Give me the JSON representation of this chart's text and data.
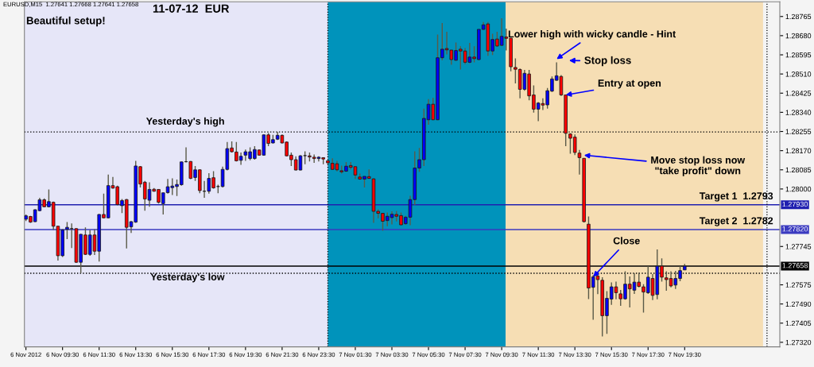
{
  "chart_data": {
    "type": "candlestick",
    "title": "11-07-12  EUR",
    "x": [
      "2012-11-06T07:30",
      "2012-11-06T07:45",
      "2012-11-06T08:00",
      "2012-11-06T08:15",
      "2012-11-06T08:30",
      "2012-11-06T08:45",
      "2012-11-06T09:00",
      "2012-11-06T09:15",
      "2012-11-06T09:30",
      "2012-11-06T09:45",
      "2012-11-06T10:00",
      "2012-11-06T10:15",
      "2012-11-06T10:30",
      "2012-11-06T10:45",
      "2012-11-06T11:00",
      "2012-11-06T11:15",
      "2012-11-06T11:30",
      "2012-11-06T11:45",
      "2012-11-06T12:00",
      "2012-11-06T12:15",
      "2012-11-06T12:30",
      "2012-11-06T12:45",
      "2012-11-06T13:00",
      "2012-11-06T13:15",
      "2012-11-06T13:30",
      "2012-11-06T13:45",
      "2012-11-06T14:00",
      "2012-11-06T14:15",
      "2012-11-06T14:30",
      "2012-11-06T14:45",
      "2012-11-06T15:00",
      "2012-11-06T15:15",
      "2012-11-06T15:30",
      "2012-11-06T15:45",
      "2012-11-06T16:00",
      "2012-11-06T16:15",
      "2012-11-06T16:30",
      "2012-11-06T16:45",
      "2012-11-06T17:00",
      "2012-11-06T17:15",
      "2012-11-06T17:30",
      "2012-11-06T17:45",
      "2012-11-06T18:00",
      "2012-11-06T18:15",
      "2012-11-06T18:30",
      "2012-11-06T18:45",
      "2012-11-06T19:00",
      "2012-11-06T19:15",
      "2012-11-06T19:30",
      "2012-11-06T19:45",
      "2012-11-06T20:00",
      "2012-11-06T20:15",
      "2012-11-06T20:30",
      "2012-11-06T20:45",
      "2012-11-06T21:00",
      "2012-11-06T21:15",
      "2012-11-06T21:30",
      "2012-11-06T21:45",
      "2012-11-06T22:00",
      "2012-11-06T22:15",
      "2012-11-06T22:30",
      "2012-11-06T22:45",
      "2012-11-06T23:00",
      "2012-11-06T23:15",
      "2012-11-06T23:30",
      "2012-11-06T23:45",
      "2012-11-07T00:00",
      "2012-11-07T00:15",
      "2012-11-07T00:30",
      "2012-11-07T00:45",
      "2012-11-07T01:00",
      "2012-11-07T01:15",
      "2012-11-07T01:30",
      "2012-11-07T01:45",
      "2012-11-07T02:00",
      "2012-11-07T02:15",
      "2012-11-07T02:30",
      "2012-11-07T02:45",
      "2012-11-07T03:00",
      "2012-11-07T03:15",
      "2012-11-07T03:30",
      "2012-11-07T03:45",
      "2012-11-07T04:00",
      "2012-11-07T04:15",
      "2012-11-07T04:30",
      "2012-11-07T04:45",
      "2012-11-07T05:00",
      "2012-11-07T05:15",
      "2012-11-07T05:30",
      "2012-11-07T05:45",
      "2012-11-07T06:00",
      "2012-11-07T06:15",
      "2012-11-07T06:30",
      "2012-11-07T06:45",
      "2012-11-07T07:00",
      "2012-11-07T07:15",
      "2012-11-07T07:30",
      "2012-11-07T07:45",
      "2012-11-07T08:00",
      "2012-11-07T08:15",
      "2012-11-07T08:30",
      "2012-11-07T08:45",
      "2012-11-07T09:00",
      "2012-11-07T09:15",
      "2012-11-07T09:30",
      "2012-11-07T09:45",
      "2012-11-07T10:00",
      "2012-11-07T10:15",
      "2012-11-07T10:30",
      "2012-11-07T10:45",
      "2012-11-07T11:00",
      "2012-11-07T11:15",
      "2012-11-07T11:30",
      "2012-11-07T11:45",
      "2012-11-07T12:00",
      "2012-11-07T12:15",
      "2012-11-07T12:30",
      "2012-11-07T12:45",
      "2012-11-07T13:00",
      "2012-11-07T13:15",
      "2012-11-07T13:30",
      "2012-11-07T13:45",
      "2012-11-07T14:00",
      "2012-11-07T14:15",
      "2012-11-07T14:30",
      "2012-11-07T14:45",
      "2012-11-07T15:00",
      "2012-11-07T15:15",
      "2012-11-07T15:30",
      "2012-11-07T15:45",
      "2012-11-07T16:00",
      "2012-11-07T16:15",
      "2012-11-07T16:30",
      "2012-11-07T16:45",
      "2012-11-07T17:00",
      "2012-11-07T17:15",
      "2012-11-07T17:30",
      "2012-11-07T17:45",
      "2012-11-07T18:00",
      "2012-11-07T18:15",
      "2012-11-07T18:30",
      "2012-11-07T18:45",
      "2012-11-07T19:00",
      "2012-11-07T19:15",
      "2012-11-07T19:30"
    ],
    "ohlc": [
      [
        1.27866,
        1.27887,
        1.27858,
        1.27881
      ],
      [
        1.27878,
        1.27881,
        1.2785,
        1.27853
      ],
      [
        1.27855,
        1.2791,
        1.27853,
        1.27908
      ],
      [
        1.27904,
        1.27961,
        1.27901,
        1.27952
      ],
      [
        1.27952,
        1.27958,
        1.27919,
        1.27921
      ],
      [
        1.27921,
        1.27998,
        1.27919,
        1.27944
      ],
      [
        1.27941,
        1.27944,
        1.27818,
        1.27835
      ],
      [
        1.27835,
        1.27835,
        1.27683,
        1.27704
      ],
      [
        1.27704,
        1.27822,
        1.27698,
        1.27818
      ],
      [
        1.27821,
        1.27853,
        1.27778,
        1.2783
      ],
      [
        1.27824,
        1.27847,
        1.27738,
        1.27824
      ],
      [
        1.27824,
        1.27826,
        1.27672,
        1.27675
      ],
      [
        1.27675,
        1.27801,
        1.27626,
        1.27799
      ],
      [
        1.27796,
        1.2783,
        1.27707,
        1.2771
      ],
      [
        1.2771,
        1.27818,
        1.27704,
        1.27796
      ],
      [
        1.27796,
        1.27822,
        1.27707,
        1.27724
      ],
      [
        1.27724,
        1.27889,
        1.27678,
        1.27887
      ],
      [
        1.27887,
        1.27979,
        1.2787,
        1.27872
      ],
      [
        1.27872,
        1.28064,
        1.2787,
        1.28015
      ],
      [
        1.28015,
        1.28053,
        1.28001,
        1.28004
      ],
      [
        1.2801,
        1.28015,
        1.27927,
        1.27931
      ],
      [
        1.27926,
        1.27956,
        1.27893,
        1.27949
      ],
      [
        1.27953,
        1.27956,
        1.27736,
        1.2783
      ],
      [
        1.27832,
        1.27858,
        1.27805,
        1.27855
      ],
      [
        1.27853,
        1.28125,
        1.2785,
        1.28102
      ],
      [
        1.28099,
        1.28102,
        1.28007,
        1.28022
      ],
      [
        1.2803,
        1.28036,
        1.27904,
        1.27956
      ],
      [
        1.2795,
        1.2803,
        1.27921,
        1.27998
      ],
      [
        1.27999,
        1.28004,
        1.27988,
        1.2799
      ],
      [
        1.27998,
        1.27999,
        1.27935,
        1.27941
      ],
      [
        1.27935,
        1.27984,
        1.27887,
        1.27983
      ],
      [
        1.27984,
        1.28045,
        1.27979,
        1.2801
      ],
      [
        1.28006,
        1.28047,
        1.27973,
        1.28013
      ],
      [
        1.28011,
        1.28042,
        1.27969,
        1.2802
      ],
      [
        1.28019,
        1.28121,
        1.28015,
        1.2812
      ],
      [
        1.28121,
        1.28185,
        1.28118,
        1.28121
      ],
      [
        1.28122,
        1.28124,
        1.28044,
        1.28047
      ],
      [
        1.28051,
        1.28102,
        1.28036,
        1.28085
      ],
      [
        1.28085,
        1.28087,
        1.27981,
        1.27993
      ],
      [
        1.2799,
        1.28036,
        1.27961,
        1.2799
      ],
      [
        1.2799,
        1.2807,
        1.27979,
        1.28047
      ],
      [
        1.2805,
        1.28079,
        1.28001,
        1.28005
      ],
      [
        1.28011,
        1.28019,
        1.27981,
        1.28011
      ],
      [
        1.28011,
        1.28099,
        1.28007,
        1.28087
      ],
      [
        1.28087,
        1.28208,
        1.28082,
        1.28179
      ],
      [
        1.28182,
        1.28211,
        1.28162,
        1.28165
      ],
      [
        1.28164,
        1.28208,
        1.28122,
        1.28125
      ],
      [
        1.28127,
        1.28162,
        1.28107,
        1.28145
      ],
      [
        1.2815,
        1.28175,
        1.28125,
        1.28165
      ],
      [
        1.28135,
        1.28185,
        1.28127,
        1.28165
      ],
      [
        1.28135,
        1.2819,
        1.2813,
        1.28175
      ],
      [
        1.28173,
        1.28175,
        1.28148,
        1.2815
      ],
      [
        1.2815,
        1.28242,
        1.28148,
        1.2824
      ],
      [
        1.2824,
        1.28248,
        1.2819,
        1.28202
      ],
      [
        1.28204,
        1.2824,
        1.28202,
        1.28219
      ],
      [
        1.28221,
        1.28253,
        1.28217,
        1.28238
      ],
      [
        1.28238,
        1.28242,
        1.28202,
        1.28204
      ],
      [
        1.28208,
        1.28211,
        1.28145,
        1.28147
      ],
      [
        1.2815,
        1.28162,
        1.28102,
        1.2813
      ],
      [
        1.2813,
        1.28145,
        1.28082,
        1.28084
      ],
      [
        1.28084,
        1.2815,
        1.28082,
        1.28147
      ],
      [
        1.28148,
        1.28167,
        1.2811,
        1.28148
      ],
      [
        1.28147,
        1.28162,
        1.28122,
        1.28142
      ],
      [
        1.28141,
        1.28153,
        1.28116,
        1.28135
      ],
      [
        1.28135,
        1.28145,
        1.28122,
        1.28141
      ],
      [
        1.28139,
        1.28141,
        1.2811,
        1.28133
      ],
      [
        1.28125,
        1.28127,
        1.2811,
        1.28116
      ],
      [
        1.28114,
        1.28136,
        1.28084,
        1.28087
      ],
      [
        1.28112,
        1.28125,
        1.28078,
        1.28085
      ],
      [
        1.28081,
        1.28104,
        1.28068,
        1.28076
      ],
      [
        1.28079,
        1.28119,
        1.28076,
        1.28101
      ],
      [
        1.28104,
        1.28119,
        1.28087,
        1.28096
      ],
      [
        1.28099,
        1.28099,
        1.28045,
        1.28062
      ],
      [
        1.28053,
        1.28068,
        1.28041,
        1.28044
      ],
      [
        1.28044,
        1.28056,
        1.28007,
        1.28056
      ],
      [
        1.28055,
        1.28087,
        1.28045,
        1.28047
      ],
      [
        1.28045,
        1.28047,
        1.2785,
        1.27901
      ],
      [
        1.27901,
        1.2791,
        1.2787,
        1.27892
      ],
      [
        1.27892,
        1.27892,
        1.27815,
        1.27857
      ],
      [
        1.2786,
        1.27896,
        1.27835,
        1.27879
      ],
      [
        1.27873,
        1.27901,
        1.27843,
        1.27888
      ],
      [
        1.27887,
        1.27902,
        1.27856,
        1.27879
      ],
      [
        1.27882,
        1.27896,
        1.27839,
        1.27841
      ],
      [
        1.27846,
        1.27881,
        1.27841,
        1.27875
      ],
      [
        1.27875,
        1.2797,
        1.27839,
        1.27953
      ],
      [
        1.27953,
        1.28167,
        1.27929,
        1.28093
      ],
      [
        1.28093,
        1.28182,
        1.28076,
        1.2813
      ],
      [
        1.2813,
        1.28356,
        1.28102,
        1.28313
      ],
      [
        1.28307,
        1.28399,
        1.28285,
        1.28376
      ],
      [
        1.28376,
        1.28404,
        1.28305,
        1.28307
      ],
      [
        1.28307,
        1.28685,
        1.28305,
        1.28582
      ],
      [
        1.28582,
        1.28736,
        1.28571,
        1.2862
      ],
      [
        1.28623,
        1.28697,
        1.28597,
        1.28617
      ],
      [
        1.28616,
        1.28616,
        1.28551,
        1.28574
      ],
      [
        1.28571,
        1.2865,
        1.28568,
        1.28614
      ],
      [
        1.2862,
        1.28633,
        1.2853,
        1.28612
      ],
      [
        1.28612,
        1.28625,
        1.28554,
        1.28562
      ],
      [
        1.28562,
        1.28648,
        1.28557,
        1.28585
      ],
      [
        1.28585,
        1.28633,
        1.28562,
        1.28578
      ],
      [
        1.28574,
        1.28708,
        1.28571,
        1.28708
      ],
      [
        1.28708,
        1.2874,
        1.28705,
        1.28728
      ],
      [
        1.28732,
        1.2874,
        1.28591,
        1.28612
      ],
      [
        1.28612,
        1.28688,
        1.28594,
        1.28663
      ],
      [
        1.28665,
        1.28697,
        1.28631,
        1.28634
      ],
      [
        1.28637,
        1.28757,
        1.28634,
        1.28677
      ],
      [
        1.28674,
        1.28711,
        1.28614,
        1.28668
      ],
      [
        1.28669,
        1.28669,
        1.28522,
        1.28542
      ],
      [
        1.28539,
        1.28579,
        1.28468,
        1.28531
      ],
      [
        1.2853,
        1.28534,
        1.28402,
        1.28442
      ],
      [
        1.28442,
        1.28528,
        1.28436,
        1.28513
      ],
      [
        1.2851,
        1.28528,
        1.28393,
        1.28413
      ],
      [
        1.28417,
        1.28459,
        1.28339,
        1.28354
      ],
      [
        1.28354,
        1.28385,
        1.28301,
        1.28381
      ],
      [
        1.28379,
        1.28402,
        1.2835,
        1.28372
      ],
      [
        1.28373,
        1.28448,
        1.28356,
        1.28436
      ],
      [
        1.28434,
        1.28499,
        1.2843,
        1.28488
      ],
      [
        1.28482,
        1.28562,
        1.2848,
        1.28502
      ],
      [
        1.28499,
        1.28505,
        1.28413,
        1.28417
      ],
      [
        1.28417,
        1.28417,
        1.2819,
        1.28247
      ],
      [
        1.28244,
        1.28247,
        1.28156,
        1.28225
      ],
      [
        1.2823,
        1.28242,
        1.2815,
        1.28162
      ],
      [
        1.28159,
        1.28173,
        1.28064,
        1.28139
      ],
      [
        1.28136,
        1.28136,
        1.27852,
        1.27855
      ],
      [
        1.27844,
        1.27878,
        1.27512,
        1.27561
      ],
      [
        1.27564,
        1.27618,
        1.2742,
        1.2761
      ],
      [
        1.27614,
        1.27623,
        1.27534,
        1.27598
      ],
      [
        1.27595,
        1.27609,
        1.27346,
        1.27438
      ],
      [
        1.27438,
        1.27547,
        1.27358,
        1.27515
      ],
      [
        1.27512,
        1.27586,
        1.27486,
        1.27566
      ],
      [
        1.27566,
        1.27589,
        1.27511,
        1.2754
      ],
      [
        1.27535,
        1.27552,
        1.27482,
        1.27513
      ],
      [
        1.27513,
        1.27635,
        1.27509,
        1.27578
      ],
      [
        1.27578,
        1.27612,
        1.27475,
        1.27557
      ],
      [
        1.27551,
        1.27626,
        1.27535,
        1.27587
      ],
      [
        1.27587,
        1.27629,
        1.27564,
        1.27568
      ],
      [
        1.27566,
        1.27578,
        1.27452,
        1.27543
      ],
      [
        1.2754,
        1.27658,
        1.27535,
        1.27609
      ],
      [
        1.27603,
        1.27623,
        1.27507,
        1.27528
      ],
      [
        1.27532,
        1.27732,
        1.27511,
        1.27658
      ],
      [
        1.27658,
        1.27692,
        1.27589,
        1.27609
      ],
      [
        1.27606,
        1.27635,
        1.27549,
        1.27598
      ],
      [
        1.27603,
        1.27635,
        1.27564,
        1.2757
      ],
      [
        1.27574,
        1.27637,
        1.27557,
        1.27603
      ],
      [
        1.27603,
        1.27658,
        1.27591,
        1.27638
      ],
      [
        1.27641,
        1.27668,
        1.27641,
        1.27658
      ]
    ],
    "xlim": [
      "2012-11-06T07:25",
      "2012-11-08T00:42"
    ],
    "ylim": [
      1.273,
      1.2883
    ],
    "xticks": [
      {
        "value": "2012-11-06T07:30",
        "label": "6 Nov 2012"
      },
      {
        "value": "2012-11-06T09:30",
        "label": "6 Nov 09:30"
      },
      {
        "value": "2012-11-06T11:30",
        "label": "6 Nov 11:30"
      },
      {
        "value": "2012-11-06T13:30",
        "label": "6 Nov 13:30"
      },
      {
        "value": "2012-11-06T15:30",
        "label": "6 Nov 15:30"
      },
      {
        "value": "2012-11-06T17:30",
        "label": "6 Nov 17:30"
      },
      {
        "value": "2012-11-06T19:30",
        "label": "6 Nov 19:30"
      },
      {
        "value": "2012-11-06T21:30",
        "label": "6 Nov 21:30"
      },
      {
        "value": "2012-11-06T23:30",
        "label": "6 Nov 23:30"
      },
      {
        "value": "2012-11-07T01:30",
        "label": "7 Nov 01:30"
      },
      {
        "value": "2012-11-07T03:30",
        "label": "7 Nov 03:30"
      },
      {
        "value": "2012-11-07T05:30",
        "label": "7 Nov 05:30"
      },
      {
        "value": "2012-11-07T07:30",
        "label": "7 Nov 07:30"
      },
      {
        "value": "2012-11-07T09:30",
        "label": "7 Nov 09:30"
      },
      {
        "value": "2012-11-07T11:30",
        "label": "7 Nov 11:30"
      },
      {
        "value": "2012-11-07T13:30",
        "label": "7 Nov 13:30"
      },
      {
        "value": "2012-11-07T15:30",
        "label": "7 Nov 15:30"
      },
      {
        "value": "2012-11-07T17:30",
        "label": "7 Nov 17:30"
      },
      {
        "value": "2012-11-07T19:30",
        "label": "7 Nov 19:30"
      }
    ],
    "yticks": [
      1.28765,
      {
        "value": 1.2868,
        "label": "1.28680"
      },
      1.28595,
      {
        "value": 1.2851,
        "label": "1.28510"
      },
      1.28425,
      {
        "value": 1.2834,
        "label": "1.28340"
      },
      1.28255,
      {
        "value": 1.2817,
        "label": "1.28170"
      },
      1.28085,
      {
        "value": 1.28,
        "label": "1.28000"
      },
      1.27745,
      1.27575,
      {
        "value": 1.2749,
        "label": "1.27490"
      },
      1.27405,
      {
        "value": 1.2732,
        "label": "1.27320"
      }
    ],
    "bands": [
      {
        "axis": "x",
        "from": "2012-11-06T07:25",
        "to": "2012-11-07T00:00",
        "color": "#e6e6f8"
      },
      {
        "axis": "x",
        "from": "2012-11-07T00:00",
        "to": "2012-11-07T09:43",
        "color": "#0093bb"
      },
      {
        "axis": "x",
        "from": "2012-11-07T09:43",
        "to": "2012-11-07T23:47",
        "color": "#f6deb4"
      }
    ],
    "ref_lines": [
      {
        "axis": "y",
        "value": 1.28253,
        "label": "Yesterday's high",
        "color": "#000000",
        "line_style": "dotted"
      },
      {
        "axis": "y",
        "value": 1.27626,
        "label": "Yesterday's low",
        "color": "#000000",
        "line_style": "dotted"
      },
      {
        "axis": "y",
        "value": 1.2793,
        "label": "1.27930",
        "color": "#2020b0",
        "line_style": "solid"
      },
      {
        "axis": "y",
        "value": 1.2782,
        "label": "1.27820",
        "color": "#3a3ac0",
        "line_style": "solid"
      },
      {
        "axis": "y",
        "value": 1.27658,
        "label": "1.27658",
        "color": "#000000",
        "line_style": "solid"
      },
      {
        "axis": "x",
        "value": "2012-11-07T00:00",
        "color": "#000000",
        "line_style": "dotted"
      },
      {
        "axis": "x",
        "value": "2012-11-08T00:00",
        "color": "#000000",
        "line_style": "dotted"
      }
    ],
    "annotations": [
      "EURUSD,M15  1.27641 1.27668 1.27641 1.27658",
      "Beautiful setup!",
      {
        "text": "Lower high with wicky candle - Hint",
        "x": "2012-11-07T12:30",
        "y": 1.28576
      },
      "Stop loss",
      {
        "text": "Entry at open",
        "x": "2012-11-07T13:00",
        "y": 1.28417
      },
      {
        "text": "Move stop loss now\n\"take profit\" down",
        "x": "2012-11-07T14:00",
        "y": 1.2815
      },
      {
        "text": "Close",
        "x": "2012-11-07T14:30",
        "y": 1.2761
      },
      {
        "text": "Target 1  1.2793",
        "y": 1.2793
      },
      {
        "text": "Target 2  1.2782",
        "y": 1.2782
      }
    ]
  }
}
